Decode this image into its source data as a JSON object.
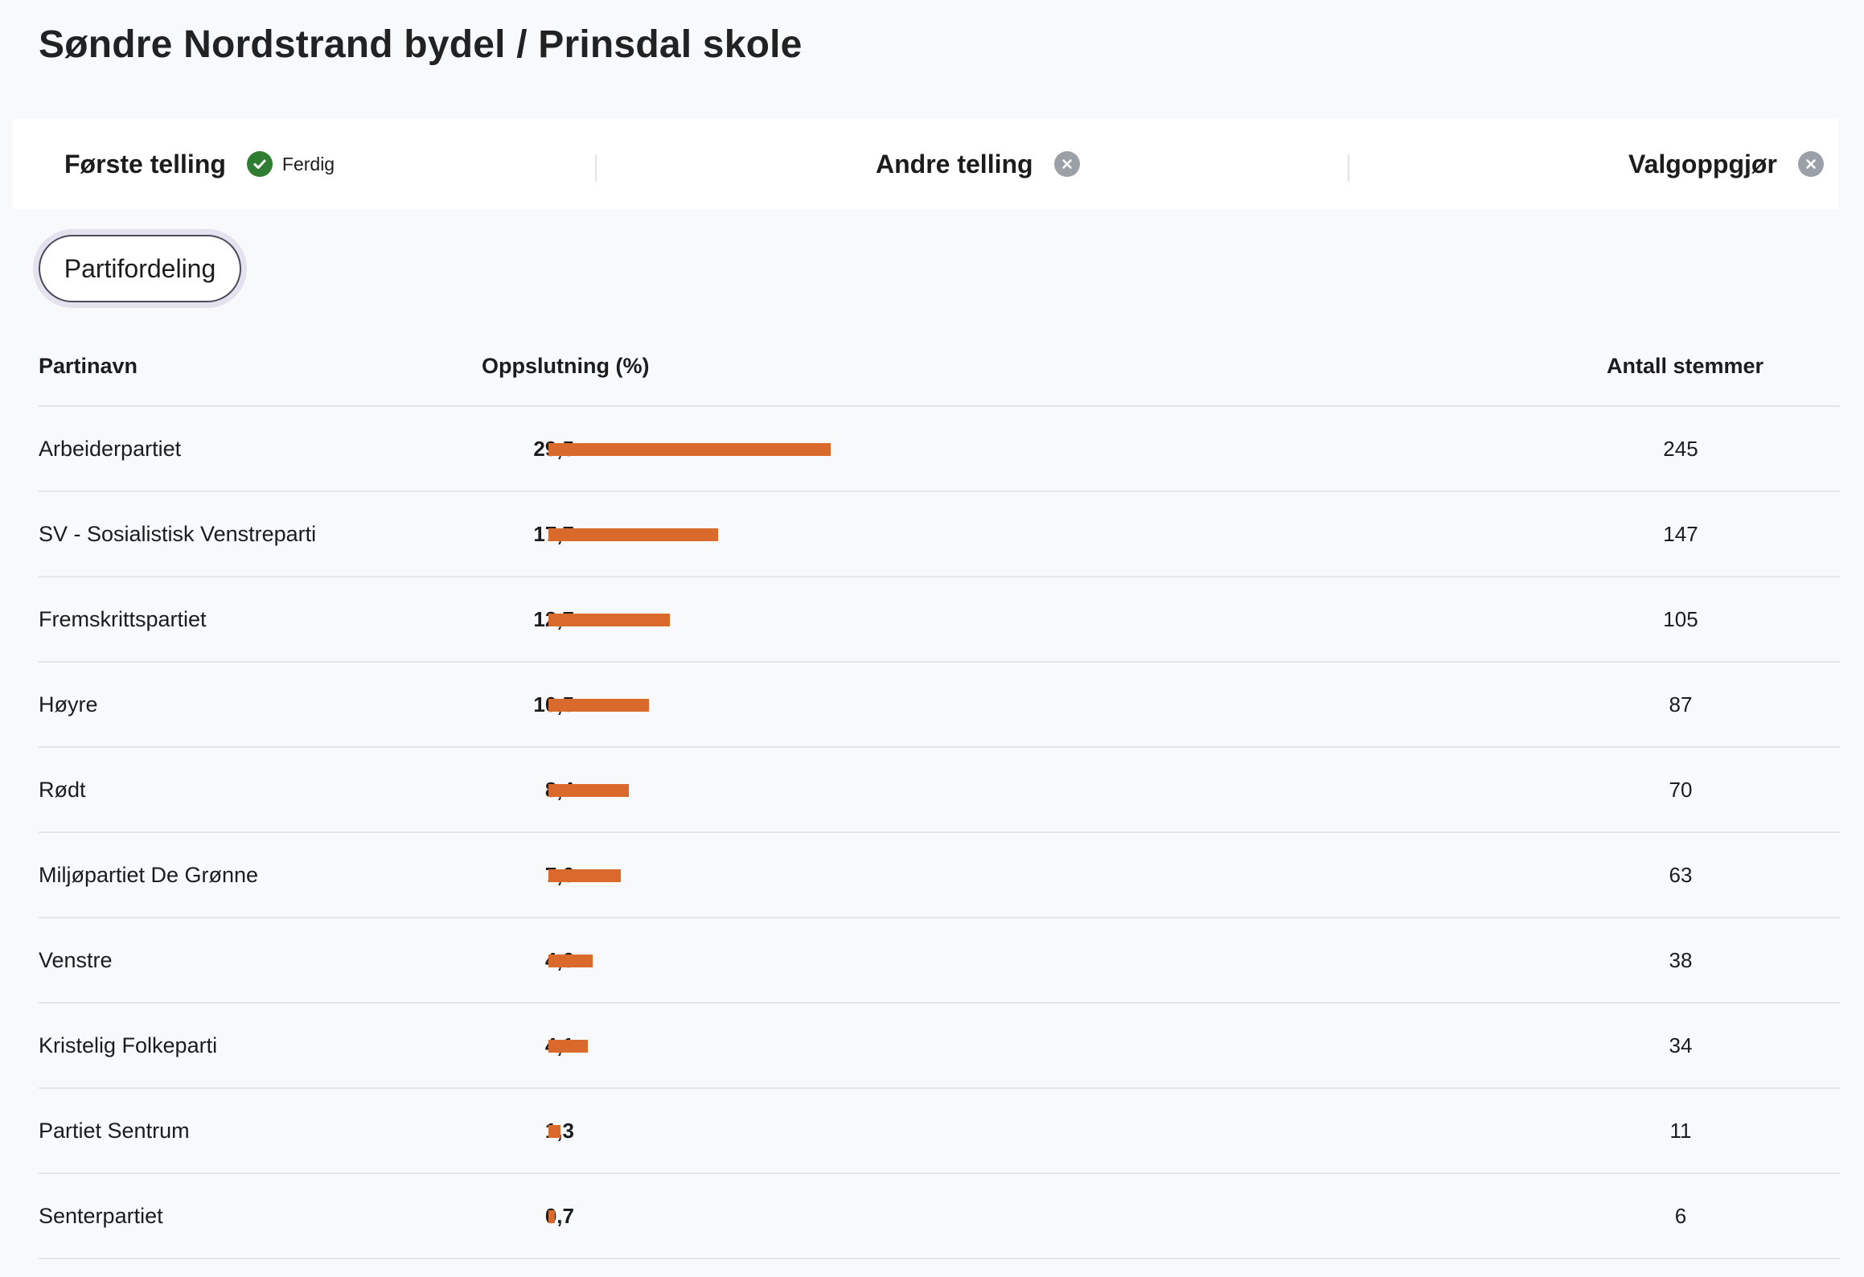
{
  "page": {
    "title": "Søndre Nordstrand bydel / Prinsdal skole"
  },
  "status_bar": {
    "items": [
      {
        "label": "Første telling",
        "status": "Ferdig",
        "icon": "check-circle-icon",
        "color": "#2e7d32"
      },
      {
        "label": "Andre telling",
        "status": "",
        "icon": "close-circle-icon",
        "color": "#9aa0a6"
      },
      {
        "label": "Valgoppgjør",
        "status": "",
        "icon": "close-circle-icon",
        "color": "#9aa0a6"
      }
    ]
  },
  "tabs": {
    "active_label": "Partifordeling"
  },
  "table": {
    "headers": {
      "party": "Partinavn",
      "share": "Oppslutning (%)",
      "votes": "Antall stemmer"
    },
    "bar_color": "#d96a2b",
    "rows": [
      {
        "party": "Arbeiderpartiet",
        "share": "29,5",
        "share_value": 29.5,
        "votes": "245"
      },
      {
        "party": "SV - Sosialistisk Venstreparti",
        "share": "17,7",
        "share_value": 17.7,
        "votes": "147"
      },
      {
        "party": "Fremskrittspartiet",
        "share": "12,7",
        "share_value": 12.7,
        "votes": "105"
      },
      {
        "party": "Høyre",
        "share": "10,5",
        "share_value": 10.5,
        "votes": "87"
      },
      {
        "party": "Rødt",
        "share": "8,4",
        "share_value": 8.4,
        "votes": "70"
      },
      {
        "party": "Miljøpartiet De Grønne",
        "share": "7,6",
        "share_value": 7.6,
        "votes": "63"
      },
      {
        "party": "Venstre",
        "share": "4,6",
        "share_value": 4.6,
        "votes": "38"
      },
      {
        "party": "Kristelig Folkeparti",
        "share": "4,1",
        "share_value": 4.1,
        "votes": "34"
      },
      {
        "party": "Partiet Sentrum",
        "share": "1,3",
        "share_value": 1.3,
        "votes": "11"
      },
      {
        "party": "Senterpartiet",
        "share": "0,7",
        "share_value": 0.7,
        "votes": "6"
      }
    ]
  }
}
